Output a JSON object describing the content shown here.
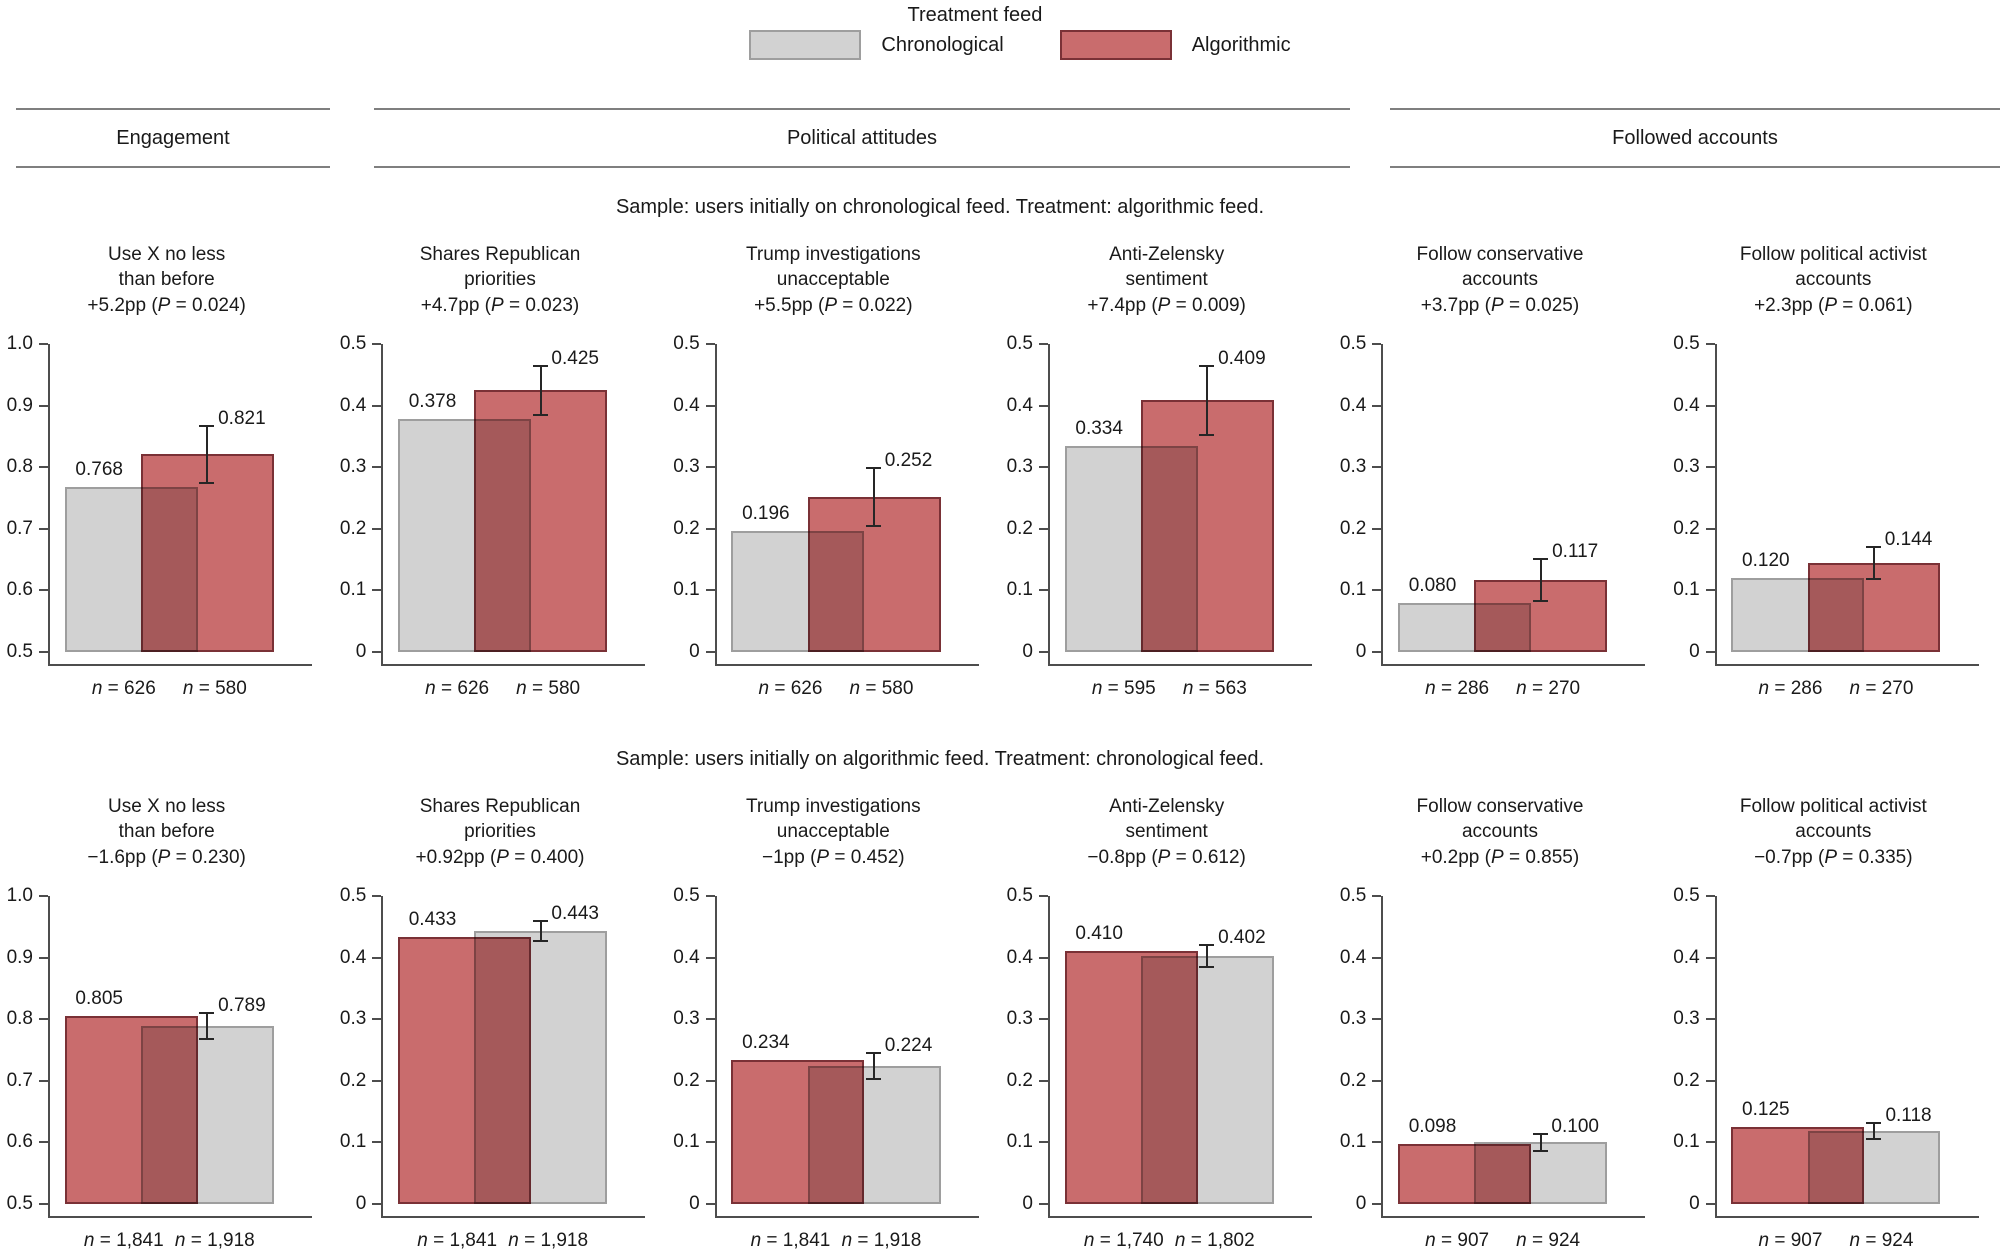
{
  "figure": {
    "legend": {
      "title": "Treatment feed",
      "items": [
        {
          "label": "Chronological",
          "feed": "chronological"
        },
        {
          "label": "Algorithmic",
          "feed": "algorithmic"
        }
      ]
    },
    "sections": [
      {
        "label": "Engagement"
      },
      {
        "label": "Political attitudes"
      },
      {
        "label": "Followed accounts"
      }
    ]
  },
  "colors": {
    "chronological": {
      "fill": "#d2d2d2",
      "border": "#9e9e9e"
    },
    "algorithmic": {
      "fill": "#c96c6d",
      "border": "#7a3136"
    },
    "axis": "#4d4d4d",
    "error": "#262626"
  },
  "chart_data": {
    "type": "bar",
    "grid": false,
    "legend_position": "top",
    "rows": [
      {
        "caption": "Sample: users initially on chronological feed. Treatment: algorithmic feed.",
        "panels": [
          {
            "title_lines": [
              "Use X no less",
              "than before"
            ],
            "effect": "+5.2pp",
            "p_value": "0.024",
            "ylim": [
              0.5,
              1.0
            ],
            "yticks": [
              "1.0",
              "0.9",
              "0.8",
              "0.7",
              "0.6",
              "0.5"
            ],
            "bars": [
              {
                "feed": "chronological",
                "value": 0.768,
                "label": "0.768",
                "n": "626"
              },
              {
                "feed": "algorithmic",
                "value": 0.821,
                "label": "0.821",
                "n": "580",
                "err": 0.046
              }
            ]
          },
          {
            "title_lines": [
              "Shares Republican",
              "priorities"
            ],
            "effect": "+4.7pp",
            "p_value": "0.023",
            "ylim": [
              0,
              0.5
            ],
            "yticks": [
              "0.5",
              "0.4",
              "0.3",
              "0.2",
              "0.1",
              "0"
            ],
            "bars": [
              {
                "feed": "chronological",
                "value": 0.378,
                "label": "0.378",
                "n": "626"
              },
              {
                "feed": "algorithmic",
                "value": 0.425,
                "label": "0.425",
                "n": "580",
                "err": 0.04
              }
            ]
          },
          {
            "title_lines": [
              "Trump investigations",
              "unacceptable"
            ],
            "effect": "+5.5pp",
            "p_value": "0.022",
            "ylim": [
              0,
              0.5
            ],
            "yticks": [
              "0.5",
              "0.4",
              "0.3",
              "0.2",
              "0.1",
              "0"
            ],
            "bars": [
              {
                "feed": "chronological",
                "value": 0.196,
                "label": "0.196",
                "n": "626"
              },
              {
                "feed": "algorithmic",
                "value": 0.252,
                "label": "0.252",
                "n": "580",
                "err": 0.047
              }
            ]
          },
          {
            "title_lines": [
              "Anti-Zelensky",
              "sentiment"
            ],
            "effect": "+7.4pp",
            "p_value": "0.009",
            "ylim": [
              0,
              0.5
            ],
            "yticks": [
              "0.5",
              "0.4",
              "0.3",
              "0.2",
              "0.1",
              "0"
            ],
            "bars": [
              {
                "feed": "chronological",
                "value": 0.334,
                "label": "0.334",
                "n": "595"
              },
              {
                "feed": "algorithmic",
                "value": 0.409,
                "label": "0.409",
                "n": "563",
                "err": 0.056
              }
            ]
          },
          {
            "title_lines": [
              "Follow conservative",
              "accounts"
            ],
            "effect": "+3.7pp",
            "p_value": "0.025",
            "ylim": [
              0,
              0.5
            ],
            "yticks": [
              "0.5",
              "0.4",
              "0.3",
              "0.2",
              "0.1",
              "0"
            ],
            "bars": [
              {
                "feed": "chronological",
                "value": 0.08,
                "label": "0.080",
                "n": "286"
              },
              {
                "feed": "algorithmic",
                "value": 0.117,
                "label": "0.117",
                "n": "270",
                "err": 0.034
              }
            ]
          },
          {
            "title_lines": [
              "Follow political activist",
              "accounts"
            ],
            "effect": "+2.3pp",
            "p_value": "0.061",
            "ylim": [
              0,
              0.5
            ],
            "yticks": [
              "0.5",
              "0.4",
              "0.3",
              "0.2",
              "0.1",
              "0"
            ],
            "bars": [
              {
                "feed": "chronological",
                "value": 0.12,
                "label": "0.120",
                "n": "286"
              },
              {
                "feed": "algorithmic",
                "value": 0.144,
                "label": "0.144",
                "n": "270",
                "err": 0.026
              }
            ]
          }
        ]
      },
      {
        "caption": "Sample: users initially on algorithmic feed. Treatment: chronological feed.",
        "panels": [
          {
            "title_lines": [
              "Use X no less",
              "than before"
            ],
            "effect": "−1.6pp",
            "p_value": "0.230",
            "ylim": [
              0.5,
              1.0
            ],
            "yticks": [
              "1.0",
              "0.9",
              "0.8",
              "0.7",
              "0.6",
              "0.5"
            ],
            "bars": [
              {
                "feed": "algorithmic",
                "value": 0.805,
                "label": "0.805",
                "n": "1,841"
              },
              {
                "feed": "chronological",
                "value": 0.789,
                "label": "0.789",
                "n": "1,918",
                "err": 0.021
              }
            ]
          },
          {
            "title_lines": [
              "Shares Republican",
              "priorities"
            ],
            "effect": "+0.92pp",
            "p_value": "0.400",
            "ylim": [
              0,
              0.5
            ],
            "yticks": [
              "0.5",
              "0.4",
              "0.3",
              "0.2",
              "0.1",
              "0"
            ],
            "bars": [
              {
                "feed": "algorithmic",
                "value": 0.433,
                "label": "0.433",
                "n": "1,841"
              },
              {
                "feed": "chronological",
                "value": 0.443,
                "label": "0.443",
                "n": "1,918",
                "err": 0.016
              }
            ]
          },
          {
            "title_lines": [
              "Trump investigations",
              "unacceptable"
            ],
            "effect": "−1pp",
            "p_value": "0.452",
            "ylim": [
              0,
              0.5
            ],
            "yticks": [
              "0.5",
              "0.4",
              "0.3",
              "0.2",
              "0.1",
              "0"
            ],
            "bars": [
              {
                "feed": "algorithmic",
                "value": 0.234,
                "label": "0.234",
                "n": "1,841"
              },
              {
                "feed": "chronological",
                "value": 0.224,
                "label": "0.224",
                "n": "1,918",
                "err": 0.021
              }
            ]
          },
          {
            "title_lines": [
              "Anti-Zelensky",
              "sentiment"
            ],
            "effect": "−0.8pp",
            "p_value": "0.612",
            "ylim": [
              0,
              0.5
            ],
            "yticks": [
              "0.5",
              "0.4",
              "0.3",
              "0.2",
              "0.1",
              "0"
            ],
            "bars": [
              {
                "feed": "algorithmic",
                "value": 0.41,
                "label": "0.410",
                "n": "1,740"
              },
              {
                "feed": "chronological",
                "value": 0.402,
                "label": "0.402",
                "n": "1,802",
                "err": 0.018
              }
            ]
          },
          {
            "title_lines": [
              "Follow conservative",
              "accounts"
            ],
            "effect": "+0.2pp",
            "p_value": "0.855",
            "ylim": [
              0,
              0.5
            ],
            "yticks": [
              "0.5",
              "0.4",
              "0.3",
              "0.2",
              "0.1",
              "0"
            ],
            "bars": [
              {
                "feed": "algorithmic",
                "value": 0.098,
                "label": "0.098",
                "n": "907"
              },
              {
                "feed": "chronological",
                "value": 0.1,
                "label": "0.100",
                "n": "924",
                "err": 0.014
              }
            ]
          },
          {
            "title_lines": [
              "Follow political activist",
              "accounts"
            ],
            "effect": "−0.7pp",
            "p_value": "0.335",
            "ylim": [
              0,
              0.5
            ],
            "yticks": [
              "0.5",
              "0.4",
              "0.3",
              "0.2",
              "0.1",
              "0"
            ],
            "bars": [
              {
                "feed": "algorithmic",
                "value": 0.125,
                "label": "0.125",
                "n": "907"
              },
              {
                "feed": "chronological",
                "value": 0.118,
                "label": "0.118",
                "n": "924",
                "err": 0.013
              }
            ]
          }
        ]
      }
    ]
  }
}
